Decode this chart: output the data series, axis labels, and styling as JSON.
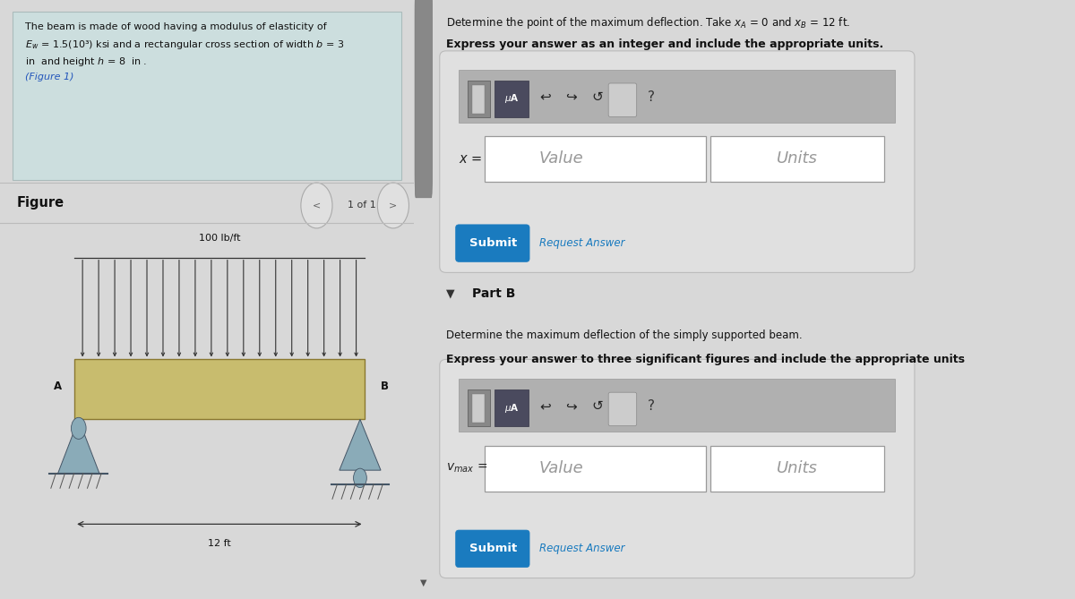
{
  "bg_color": "#d8d8d8",
  "left_panel_bg": "#d0dede",
  "right_panel_bg": "#e8e8e8",
  "text_box_bg": "#ccdede",
  "text_box_edge": "#aabbbb",
  "left_text_lines": [
    "The beam is made of wood having a modulus of elasticity of",
    "$E_w$ = 1.5(10³) ksi and a rectangular cross section of width $b$ = 3",
    "in  and height $h$ = 8  in .",
    "(Figure 1)"
  ],
  "figure_label": "Figure",
  "nav_text": "1 of 1",
  "load_label": "100 lb/ft",
  "span_label": "12 ft",
  "node_A": "A",
  "node_B": "B",
  "beam_color": "#c8bc6e",
  "beam_edge_color": "#8a7830",
  "support_color": "#8aabb8",
  "arrow_color": "#333333",
  "right_top_text1": "Determine the point of the maximum deflection. Take $x_A$ = 0 and $x_B$ = 12 ft.",
  "right_top_text2": "Express your answer as an integer and include the appropriate units.",
  "x_label": "$x$ =",
  "value_placeholder": "Value",
  "units_placeholder": "Units",
  "submit_text": "Submit",
  "request_answer_text": "Request Answer",
  "part_b_label": "Part B",
  "part_b_desc1": "Determine the maximum deflection of the simply supported beam.",
  "part_b_desc2": "Express your answer to three significant figures and include the appropriate units",
  "vmax_label": "$v_{max}$ =",
  "submit_color": "#1a7bbf",
  "input_bg": "#ffffff",
  "input_border": "#999999",
  "toolbar_color": "#a0a0a0",
  "icon1_color": "#8a8a8a",
  "icon2_color": "#4a4a5a",
  "scroll_bg": "#c0c0c0",
  "scroll_handle": "#888888",
  "nav_circle_color": "#999999",
  "figure_divider_color": "#bbbbbb"
}
